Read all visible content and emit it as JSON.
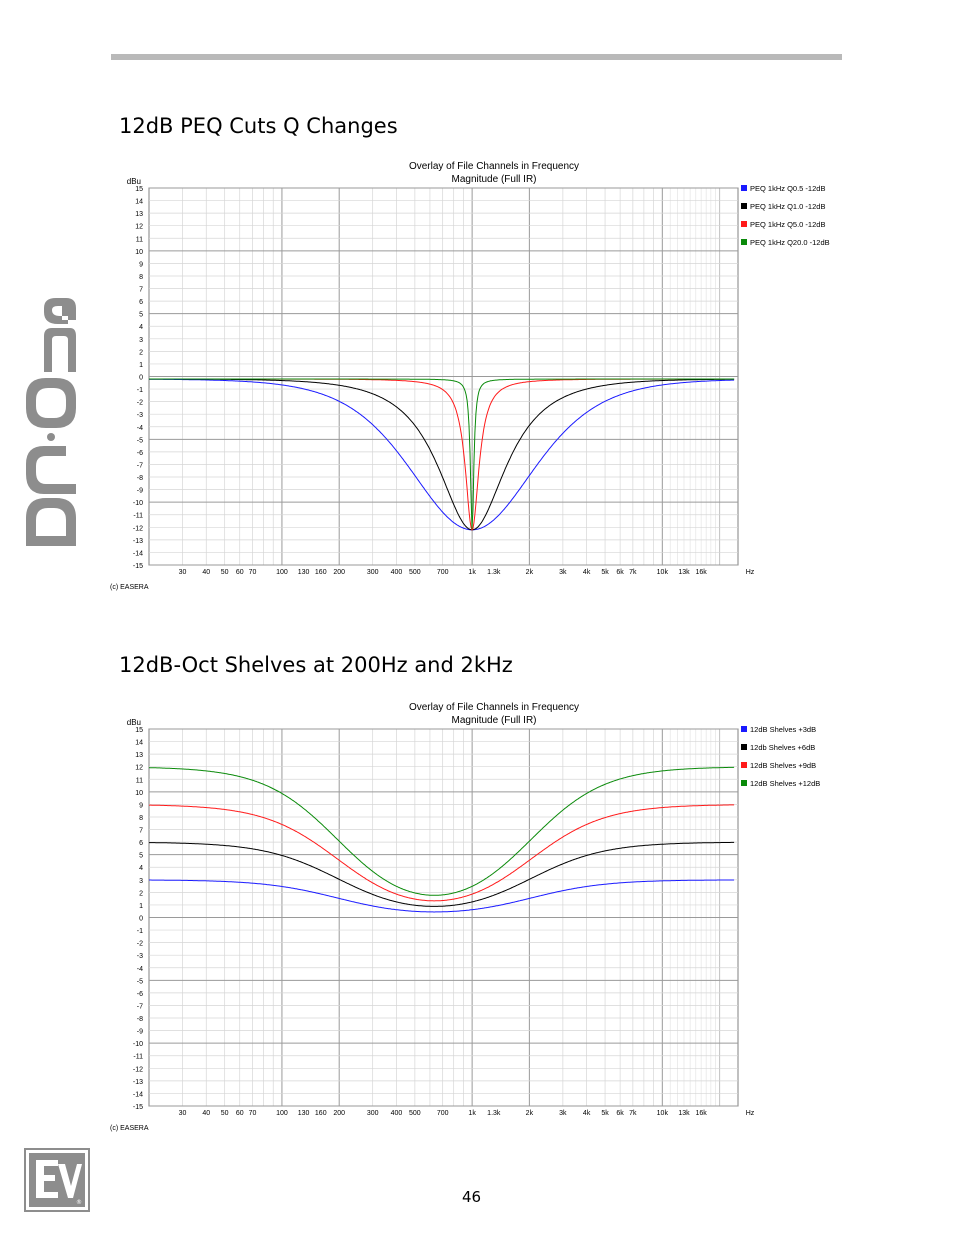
{
  "brand": {
    "side_logo": "DC·One",
    "ev_logo": "EV"
  },
  "page_number": "46",
  "colors": {
    "blue": "#1a1aff",
    "black": "#000000",
    "red": "#ff1a1a",
    "green": "#0a8a0a",
    "rule": "#b9b9b9"
  },
  "sections": [
    {
      "title": "12dB PEQ Cuts Q Changes"
    },
    {
      "title": "12dB-Oct Shelves at 200Hz and 2kHz"
    }
  ],
  "chart_data": [
    {
      "type": "line",
      "title": "Overlay of File Channels in Frequency",
      "subtitle": "Magnitude (Full IR)",
      "ylabel": "dBu",
      "xunit": "Hz",
      "credit": "(c) EASERA",
      "xscale": "log",
      "xlim": [
        20,
        25000
      ],
      "ylim": [
        -15,
        15
      ],
      "grid": true,
      "legend_position": "right",
      "x_tick_labels": [
        "30",
        "40",
        "50",
        "60",
        "70",
        "100",
        "130",
        "160",
        "200",
        "300",
        "400",
        "500",
        "700",
        "1k",
        "1.3k",
        "2k",
        "3k",
        "4k",
        "5k",
        "6k",
        "7k",
        "10k",
        "13k",
        "16k"
      ],
      "y_tick_labels": [
        "15",
        "14",
        "13",
        "12",
        "11",
        "10",
        "9",
        "8",
        "7",
        "6",
        "5",
        "4",
        "3",
        "2",
        "1",
        "0",
        "-1",
        "-2",
        "-3",
        "-4",
        "-5",
        "-6",
        "-7",
        "-8",
        "-9",
        "-10",
        "-11",
        "-12",
        "-13",
        "-14",
        "-15"
      ],
      "series": [
        {
          "name": "PEQ 1kHz Q0.5 -12dB",
          "color": "#1a1aff",
          "kind": "peq",
          "f0": 1000,
          "q": 0.5,
          "gain_db": -12
        },
        {
          "name": "PEQ 1kHz Q1.0 -12dB",
          "color": "#000000",
          "kind": "peq",
          "f0": 1000,
          "q": 1.0,
          "gain_db": -12
        },
        {
          "name": "PEQ 1kHz Q5.0 -12dB",
          "color": "#ff1a1a",
          "kind": "peq",
          "f0": 1000,
          "q": 5.0,
          "gain_db": -12
        },
        {
          "name": "PEQ 1kHz Q20.0 -12dB",
          "color": "#0a8a0a",
          "kind": "peq",
          "f0": 1000,
          "q": 20.0,
          "gain_db": -12
        }
      ]
    },
    {
      "type": "line",
      "title": "Overlay of File Channels in Frequency",
      "subtitle": "Magnitude (Full IR)",
      "ylabel": "dBu",
      "xunit": "Hz",
      "credit": "(c) EASERA",
      "xscale": "log",
      "xlim": [
        20,
        25000
      ],
      "ylim": [
        -15,
        15
      ],
      "grid": true,
      "legend_position": "right",
      "x_tick_labels": [
        "30",
        "40",
        "50",
        "60",
        "70",
        "100",
        "130",
        "160",
        "200",
        "300",
        "400",
        "500",
        "700",
        "1k",
        "1.3k",
        "2k",
        "3k",
        "4k",
        "5k",
        "6k",
        "7k",
        "10k",
        "13k",
        "16k"
      ],
      "y_tick_labels": [
        "15",
        "14",
        "13",
        "12",
        "11",
        "10",
        "9",
        "8",
        "7",
        "6",
        "5",
        "4",
        "3",
        "2",
        "1",
        "0",
        "-1",
        "-2",
        "-3",
        "-4",
        "-5",
        "-6",
        "-7",
        "-8",
        "-9",
        "-10",
        "-11",
        "-12",
        "-13",
        "-14",
        "-15"
      ],
      "series": [
        {
          "name": "12dB Shelves +3dB",
          "color": "#1a1aff",
          "kind": "shelves",
          "f_low": 200,
          "f_high": 2000,
          "gain_db": 3
        },
        {
          "name": "12db Shelves +6dB",
          "color": "#000000",
          "kind": "shelves",
          "f_low": 200,
          "f_high": 2000,
          "gain_db": 6
        },
        {
          "name": "12dB Shelves +9dB",
          "color": "#ff1a1a",
          "kind": "shelves",
          "f_low": 200,
          "f_high": 2000,
          "gain_db": 9
        },
        {
          "name": "12dB Shelves +12dB",
          "color": "#0a8a0a",
          "kind": "shelves",
          "f_low": 200,
          "f_high": 2000,
          "gain_db": 12
        }
      ]
    }
  ]
}
